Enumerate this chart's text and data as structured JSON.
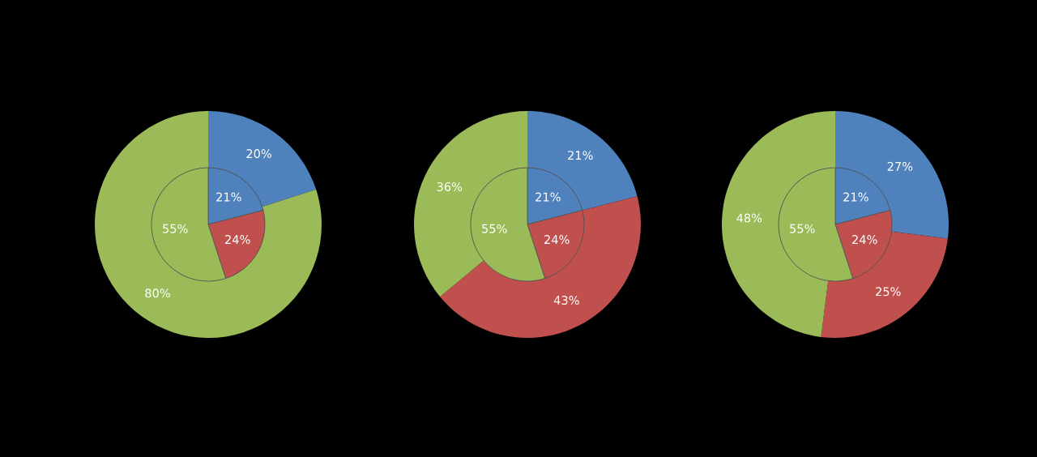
{
  "chart_data": [
    {
      "type": "donut",
      "categories": [
        null,
        null,
        null
      ],
      "series": [
        {
          "type": "pie",
          "values": [
            21,
            24,
            55
          ],
          "colors": [
            "#4f81bd",
            "#c0504d",
            "#9bbb59"
          ],
          "value_labels": [
            "21%",
            "24%",
            "55%"
          ]
        },
        {
          "type": "donut",
          "values": [
            20,
            0,
            80
          ],
          "colors": [
            "#4f81bd",
            "#c0504d",
            "#9bbb59"
          ],
          "value_labels": [
            "20%",
            null,
            "80%"
          ]
        }
      ]
    },
    {
      "type": "donut",
      "categories": [
        null,
        null,
        null
      ],
      "series": [
        {
          "type": "pie",
          "values": [
            21,
            24,
            55
          ],
          "colors": [
            "#4f81bd",
            "#c0504d",
            "#9bbb59"
          ],
          "value_labels": [
            "21%",
            "24%",
            "55%"
          ]
        },
        {
          "type": "donut",
          "values": [
            21,
            43,
            36
          ],
          "colors": [
            "#4f81bd",
            "#c0504d",
            "#9bbb59"
          ],
          "value_labels": [
            "21%",
            "43%",
            "36%"
          ]
        }
      ]
    },
    {
      "type": "donut",
      "categories": [
        null,
        null,
        null
      ],
      "series": [
        {
          "type": "pie",
          "values": [
            21,
            24,
            55
          ],
          "colors": [
            "#4f81bd",
            "#c0504d",
            "#9bbb59"
          ],
          "value_labels": [
            "21%",
            "24%",
            "55%"
          ]
        },
        {
          "type": "donut",
          "values": [
            27,
            25,
            48
          ],
          "colors": [
            "#4f81bd",
            "#c0504d",
            "#9bbb59"
          ],
          "value_labels": [
            "27%",
            "25%",
            "48%"
          ]
        }
      ]
    }
  ]
}
